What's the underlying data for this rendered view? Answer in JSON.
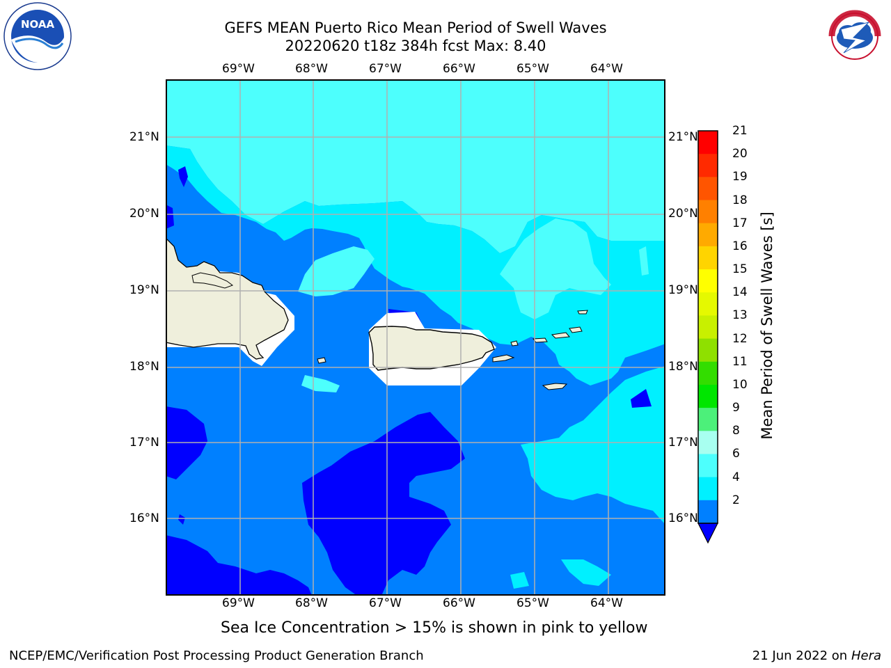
{
  "title": {
    "line1": "GEFS MEAN Puerto Rico Mean Period of Swell Waves",
    "line2": "20220620 t18z 384h fcst   Max: 8.40"
  },
  "logos": {
    "left": {
      "name": "NOAA",
      "icon": "noaa-logo"
    },
    "right": {
      "name": "NATIONAL WEATHER SERVICE",
      "icon": "nws-logo"
    }
  },
  "map": {
    "lon_labels": [
      "69°W",
      "68°W",
      "67°W",
      "66°W",
      "65°W",
      "64°W"
    ],
    "lat_labels": [
      "21°N",
      "20°N",
      "19°N",
      "18°N",
      "17°N",
      "16°N"
    ],
    "colors": {
      "land": "#efefdc",
      "no_data": "#ffffff",
      "grid": "#b0b0b0"
    }
  },
  "colorbar": {
    "label": "Mean Period of Swell Waves [s]",
    "ticks": [
      "21",
      "20",
      "19",
      "18",
      "17",
      "16",
      "15",
      "14",
      "13",
      "12",
      "11",
      "10",
      "9",
      "8",
      "6",
      "4",
      "2"
    ],
    "colors": [
      "#ff0000",
      "#ff2a00",
      "#ff5500",
      "#ff8000",
      "#ffaa00",
      "#ffd400",
      "#ffff00",
      "#e5f900",
      "#c8f000",
      "#8fe000",
      "#33dd00",
      "#00e600",
      "#4cf07a",
      "#a8fff0",
      "#4dfffd",
      "#00f0ff",
      "#0080ff"
    ],
    "under_color": "#0000ff"
  },
  "note": "Sea Ice Concentration > 15% is shown in pink to yellow",
  "footer": {
    "left": "NCEP/EMC/Verification Post Processing Product Generation Branch",
    "date": "21 Jun 2022 on",
    "machine": "Hera"
  }
}
